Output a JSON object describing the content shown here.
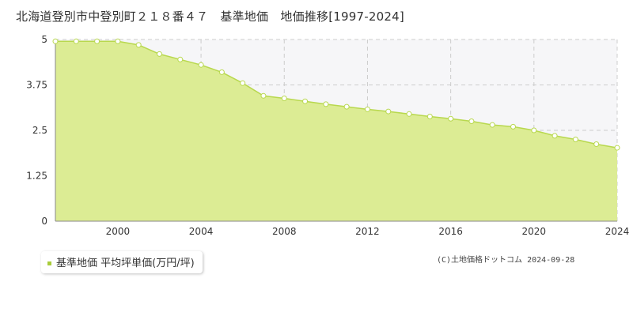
{
  "chart_data": {
    "type": "area",
    "title": "北海道登別市中登別町２１８番４７　基準地価　地価推移[1997-2024]",
    "x": [
      1997,
      1998,
      1999,
      2000,
      2001,
      2002,
      2003,
      2004,
      2005,
      2006,
      2007,
      2008,
      2009,
      2010,
      2011,
      2012,
      2013,
      2014,
      2015,
      2016,
      2017,
      2018,
      2019,
      2020,
      2021,
      2022,
      2023,
      2024
    ],
    "series": [
      {
        "name": "基準地価 平均坪単価(万円/坪)",
        "values": [
          4.95,
          4.95,
          4.95,
          4.95,
          4.85,
          4.6,
          4.45,
          4.3,
          4.1,
          3.8,
          3.45,
          3.38,
          3.3,
          3.22,
          3.15,
          3.08,
          3.02,
          2.95,
          2.88,
          2.82,
          2.75,
          2.65,
          2.6,
          2.5,
          2.35,
          2.25,
          2.12,
          2.02
        ]
      }
    ],
    "xticks": [
      "2000",
      "2004",
      "2008",
      "2012",
      "2016",
      "2020",
      "2024"
    ],
    "yticks": [
      "0",
      "1.25",
      "2.5",
      "3.75",
      "5"
    ],
    "xlim": [
      1997,
      2024
    ],
    "ylim": [
      0,
      5
    ],
    "grid": true,
    "legend_position": "bottom-left",
    "colors": {
      "fill": "#dcec94",
      "line": "#b8d84e",
      "point_stroke": "#b8d84e",
      "band": "#f6f6f8",
      "grid": "#cccccc",
      "legend_swatch": "#a8cc3a"
    }
  },
  "copyright": "(C)土地価格ドットコム 2024-09-28"
}
